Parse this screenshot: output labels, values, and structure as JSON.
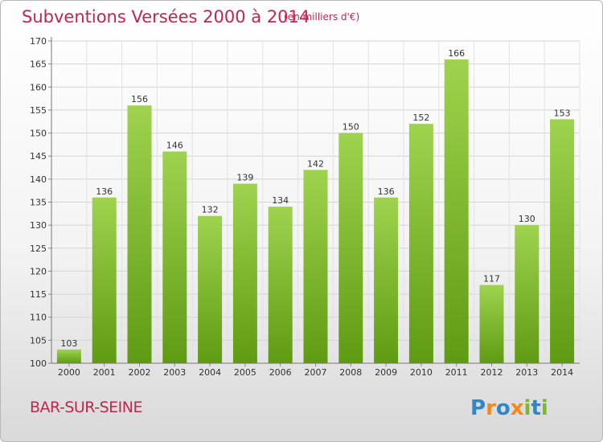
{
  "header": {
    "title": "Subventions Versées 2000 à 2014",
    "subtitle": "(en milliers d'€)"
  },
  "footer": {
    "commune": "BAR-SUR-SEINE",
    "logo_text": "Proxiti"
  },
  "colors": {
    "title": "#c0264f",
    "bar_top": "#9fd34f",
    "bar_bottom": "#5f9b12",
    "logo_blue": "#2f86c8",
    "logo_orange": "#f08a1d",
    "logo_green": "#7cb82f"
  },
  "chart_data": {
    "type": "bar",
    "title": "Subventions Versées 2000 à 2014",
    "subtitle": "(en milliers d'€)",
    "categories": [
      "2000",
      "2001",
      "2002",
      "2003",
      "2004",
      "2005",
      "2006",
      "2007",
      "2008",
      "2009",
      "2010",
      "2011",
      "2012",
      "2013",
      "2014"
    ],
    "values": [
      103,
      136,
      156,
      146,
      132,
      139,
      134,
      142,
      150,
      136,
      152,
      166,
      117,
      130,
      153
    ],
    "ylim": [
      100,
      170
    ],
    "yticks": [
      100,
      105,
      110,
      115,
      120,
      125,
      130,
      135,
      140,
      145,
      150,
      155,
      160,
      165,
      170
    ],
    "grid": true,
    "data_labels": true
  }
}
